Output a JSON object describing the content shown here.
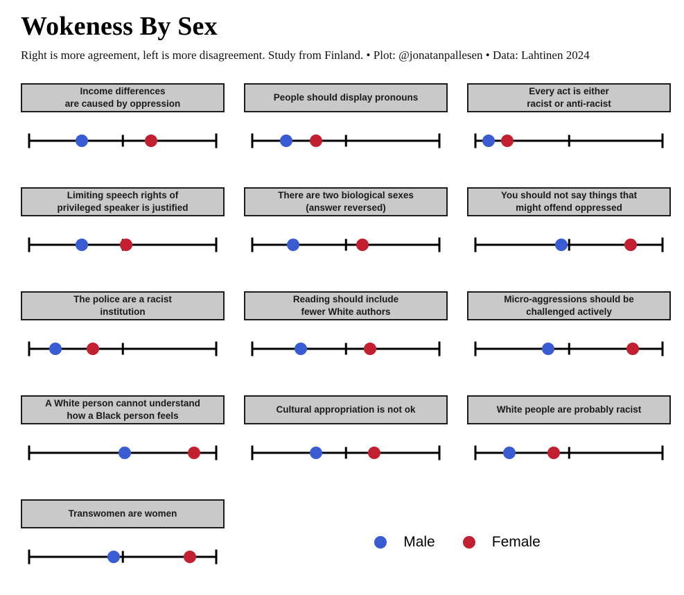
{
  "header": {
    "title": "Wokeness By Sex",
    "subtitle": "Right is more agreement, left is more disagreement. Study from Finland. • Plot: @jonatanpallesen • Data: Lahtinen 2024"
  },
  "colors": {
    "male": "#3a5cd3",
    "female": "#c22030",
    "panel_header_bg": "#c9c9c9",
    "panel_border": "#1c1c1c",
    "axis": "#000000"
  },
  "legend": {
    "items": [
      {
        "label": "Male",
        "color": "#3a5cd3"
      },
      {
        "label": "Female",
        "color": "#c22030"
      }
    ]
  },
  "chart_data": {
    "type": "scatter",
    "title": "Wokeness By Sex",
    "subtitle": "Right is more agreement, left is more disagreement. Study from Finland. • Plot: @jonatanpallesen • Data: Lahtinen 2024",
    "layout": "small multiples, 3 columns x 5 rows (13 panels), legend bottom-right",
    "axis": {
      "orientation": "horizontal",
      "range": [
        0,
        1
      ],
      "ticks": [
        0,
        0.5,
        1
      ],
      "tick_labels_visible": false,
      "note": "dot positions are fraction of axis length; 0 = left (disagreement), 1 = right (agreement)"
    },
    "series_names": [
      "Male",
      "Female"
    ],
    "panels": [
      {
        "title": "Income differences\nare caused by oppression",
        "male": 0.28,
        "female": 0.65
      },
      {
        "title": "People should display pronouns",
        "male": 0.18,
        "female": 0.34
      },
      {
        "title": "Every act is either\nracist or anti-racist",
        "male": 0.07,
        "female": 0.17
      },
      {
        "title": "Limiting speech rights of\nprivileged speaker is justified",
        "male": 0.28,
        "female": 0.52
      },
      {
        "title": "There are two biological sexes\n(answer reversed)",
        "male": 0.22,
        "female": 0.59
      },
      {
        "title": "You should not say things that\nmight offend oppressed",
        "male": 0.46,
        "female": 0.83
      },
      {
        "title": "The police are a racist\ninstitution",
        "male": 0.14,
        "female": 0.34
      },
      {
        "title": "Reading should include\nfewer White authors",
        "male": 0.26,
        "female": 0.63
      },
      {
        "title": "Micro-aggressions should be\nchallenged actively",
        "male": 0.39,
        "female": 0.84
      },
      {
        "title": "A White person cannot understand\nhow a Black person feels",
        "male": 0.51,
        "female": 0.88
      },
      {
        "title": "Cultural appropriation is not ok",
        "male": 0.34,
        "female": 0.65
      },
      {
        "title": "White people are probably racist",
        "male": 0.18,
        "female": 0.42
      },
      {
        "title": "Transwomen are women",
        "male": 0.45,
        "female": 0.86
      }
    ]
  }
}
